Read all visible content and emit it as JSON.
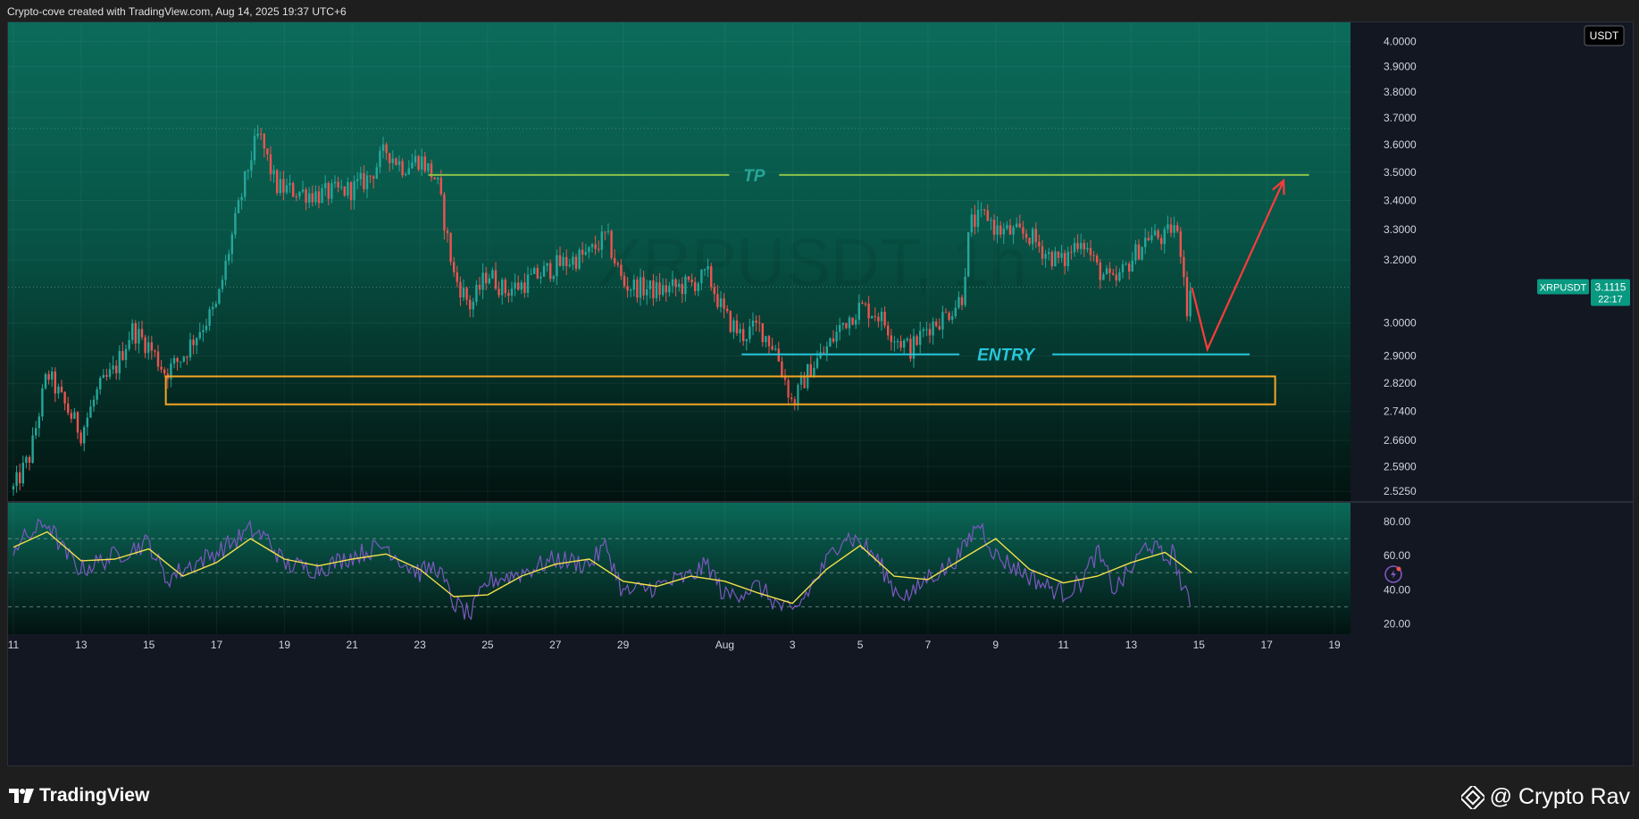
{
  "header": {
    "text": "Crypto-cove created with TradingView.com, Aug 14, 2025 19:37 UTC+6"
  },
  "footer": {
    "brand": "TradingView",
    "watermark": "@ Crypto Rav"
  },
  "colors": {
    "up_candle": "#26a69a",
    "down_candle": "#ef5350",
    "tp_line": "#8bc34a",
    "entry_line": "#26c6da",
    "zone_border": "#f5a623",
    "arrow": "#ff3b3b",
    "rsi_line": "#7e57c2",
    "rsi_ma": "#f5e04a",
    "price_tag": "#089981",
    "bg_top": "#0b6b5a",
    "bg_bottom": "#02120f"
  },
  "icons": [
    "tradingview-logo-icon",
    "lightning-alert-icon",
    "binance-diamond-icon"
  ],
  "chart_data": [
    {
      "type": "candlestick",
      "watermark_symbol": "XRPUSDT, 1h",
      "currency_label": "USDT",
      "symbol_tag": "XRPUSDT",
      "last_price": "3.1115",
      "countdown": "22:17",
      "y_scale": "log",
      "ylim": [
        2.5,
        4.08
      ],
      "price_ticks": [
        "4.0000",
        "3.9000",
        "3.8000",
        "3.7000",
        "3.6000",
        "3.5000",
        "3.4000",
        "3.3000",
        "3.2000",
        "3.0000",
        "2.9000",
        "2.8200",
        "2.7400",
        "2.6600",
        "2.5900",
        "2.5250"
      ],
      "x_ticks": [
        "11",
        "13",
        "15",
        "17",
        "19",
        "21",
        "23",
        "25",
        "27",
        "29",
        "Aug",
        "3",
        "5",
        "7",
        "9",
        "11",
        "13",
        "15",
        "17",
        "19"
      ],
      "x_tick_dates": [
        "2025-07-11",
        "2025-07-13",
        "2025-07-15",
        "2025-07-17",
        "2025-07-19",
        "2025-07-21",
        "2025-07-23",
        "2025-07-25",
        "2025-07-27",
        "2025-07-29",
        "2025-08-01",
        "2025-08-03",
        "2025-08-05",
        "2025-08-07",
        "2025-08-09",
        "2025-08-11",
        "2025-08-13",
        "2025-08-15",
        "2025-08-17",
        "2025-08-19"
      ],
      "x_range": [
        "2025-07-11",
        "2025-08-19"
      ],
      "price_path": [
        {
          "x": "2025-07-11",
          "y": 2.53
        },
        {
          "x": "2025-07-11T12:00",
          "y": 2.62
        },
        {
          "x": "2025-07-12",
          "y": 2.85
        },
        {
          "x": "2025-07-12T12:00",
          "y": 2.76
        },
        {
          "x": "2025-07-13",
          "y": 2.68
        },
        {
          "x": "2025-07-13T12:00",
          "y": 2.8
        },
        {
          "x": "2025-07-14",
          "y": 2.86
        },
        {
          "x": "2025-07-14T12:00",
          "y": 2.98
        },
        {
          "x": "2025-07-15",
          "y": 2.93
        },
        {
          "x": "2025-07-15T12:00",
          "y": 2.85
        },
        {
          "x": "2025-07-16",
          "y": 2.9
        },
        {
          "x": "2025-07-16T12:00",
          "y": 2.98
        },
        {
          "x": "2025-07-17",
          "y": 3.05
        },
        {
          "x": "2025-07-17T12:00",
          "y": 3.3
        },
        {
          "x": "2025-07-18",
          "y": 3.55
        },
        {
          "x": "2025-07-18T06:00",
          "y": 3.64
        },
        {
          "x": "2025-07-18T18:00",
          "y": 3.45
        },
        {
          "x": "2025-07-19",
          "y": 3.44
        },
        {
          "x": "2025-07-20",
          "y": 3.42
        },
        {
          "x": "2025-07-21",
          "y": 3.44
        },
        {
          "x": "2025-07-21T12:00",
          "y": 3.48
        },
        {
          "x": "2025-07-22",
          "y": 3.58
        },
        {
          "x": "2025-07-22T12:00",
          "y": 3.52
        },
        {
          "x": "2025-07-23",
          "y": 3.55
        },
        {
          "x": "2025-07-23T12:00",
          "y": 3.47
        },
        {
          "x": "2025-07-24",
          "y": 3.15
        },
        {
          "x": "2025-07-24T12:00",
          "y": 3.05
        },
        {
          "x": "2025-07-25",
          "y": 3.16
        },
        {
          "x": "2025-07-25T12:00",
          "y": 3.1
        },
        {
          "x": "2025-07-26",
          "y": 3.12
        },
        {
          "x": "2025-07-27",
          "y": 3.18
        },
        {
          "x": "2025-07-28",
          "y": 3.22
        },
        {
          "x": "2025-07-28T12:00",
          "y": 3.28
        },
        {
          "x": "2025-07-29",
          "y": 3.12
        },
        {
          "x": "2025-07-30",
          "y": 3.1
        },
        {
          "x": "2025-07-31",
          "y": 3.12
        },
        {
          "x": "2025-07-31T12:00",
          "y": 3.15
        },
        {
          "x": "2025-08-01",
          "y": 3.02
        },
        {
          "x": "2025-08-01T12:00",
          "y": 2.96
        },
        {
          "x": "2025-08-02",
          "y": 2.99
        },
        {
          "x": "2025-08-02T12:00",
          "y": 2.92
        },
        {
          "x": "2025-08-03",
          "y": 2.76
        },
        {
          "x": "2025-08-03T12:00",
          "y": 2.86
        },
        {
          "x": "2025-08-04",
          "y": 2.92
        },
        {
          "x": "2025-08-04T12:00",
          "y": 3.0
        },
        {
          "x": "2025-08-05",
          "y": 3.05
        },
        {
          "x": "2025-08-05T12:00",
          "y": 3.03
        },
        {
          "x": "2025-08-06",
          "y": 2.96
        },
        {
          "x": "2025-08-06T12:00",
          "y": 2.92
        },
        {
          "x": "2025-08-07",
          "y": 2.99
        },
        {
          "x": "2025-08-07T12:00",
          "y": 3.02
        },
        {
          "x": "2025-08-08",
          "y": 3.08
        },
        {
          "x": "2025-08-08T06:00",
          "y": 3.32
        },
        {
          "x": "2025-08-08T18:00",
          "y": 3.35
        },
        {
          "x": "2025-08-09",
          "y": 3.3
        },
        {
          "x": "2025-08-10",
          "y": 3.28
        },
        {
          "x": "2025-08-10T12:00",
          "y": 3.22
        },
        {
          "x": "2025-08-11",
          "y": 3.19
        },
        {
          "x": "2025-08-11T12:00",
          "y": 3.28
        },
        {
          "x": "2025-08-12",
          "y": 3.17
        },
        {
          "x": "2025-08-12T12:00",
          "y": 3.12
        },
        {
          "x": "2025-08-13",
          "y": 3.2
        },
        {
          "x": "2025-08-13T12:00",
          "y": 3.28
        },
        {
          "x": "2025-08-14",
          "y": 3.27
        },
        {
          "x": "2025-08-14T06:00",
          "y": 3.32
        },
        {
          "x": "2025-08-14T12:00",
          "y": 3.22
        },
        {
          "x": "2025-08-14T16:00",
          "y": 3.03
        },
        {
          "x": "2025-08-14T19:00",
          "y": 3.11
        }
      ],
      "annotations": {
        "tp": {
          "label": "TP",
          "price": 3.49,
          "from": "2025-07-23T06:00",
          "to": "2025-08-18T06:00"
        },
        "entry": {
          "label": "ENTRY",
          "price": 2.905,
          "from": "2025-08-01T12:00",
          "to": "2025-08-16T12:00"
        },
        "zone": {
          "top": 2.84,
          "bottom": 2.76,
          "from": "2025-07-15T12:00",
          "to": "2025-08-17T06:00"
        },
        "projection": [
          {
            "x": "2025-08-14T19:00",
            "y": 3.11
          },
          {
            "x": "2025-08-15T06:00",
            "y": 2.92
          },
          {
            "x": "2025-08-17T12:00",
            "y": 3.47
          }
        ]
      },
      "dotted_levels": [
        3.66,
        3.1115
      ]
    },
    {
      "type": "line",
      "indicator": "RSI",
      "ylim": [
        15,
        90
      ],
      "ticks": [
        "80.00",
        "60.00",
        "40.00",
        "20.00"
      ],
      "bands": [
        70,
        50,
        30
      ],
      "rsi_path": [
        {
          "x": "2025-07-11",
          "y": 65
        },
        {
          "x": "2025-07-12",
          "y": 80
        },
        {
          "x": "2025-07-12T12:00",
          "y": 62
        },
        {
          "x": "2025-07-13",
          "y": 52
        },
        {
          "x": "2025-07-14",
          "y": 60
        },
        {
          "x": "2025-07-15",
          "y": 68
        },
        {
          "x": "2025-07-15T12:00",
          "y": 46
        },
        {
          "x": "2025-07-16",
          "y": 52
        },
        {
          "x": "2025-07-17",
          "y": 62
        },
        {
          "x": "2025-07-18",
          "y": 75
        },
        {
          "x": "2025-07-18T12:00",
          "y": 70
        },
        {
          "x": "2025-07-19",
          "y": 55
        },
        {
          "x": "2025-07-20",
          "y": 52
        },
        {
          "x": "2025-07-21",
          "y": 60
        },
        {
          "x": "2025-07-22",
          "y": 66
        },
        {
          "x": "2025-07-22T12:00",
          "y": 56
        },
        {
          "x": "2025-07-23",
          "y": 50
        },
        {
          "x": "2025-07-23T12:00",
          "y": 54
        },
        {
          "x": "2025-07-24",
          "y": 32
        },
        {
          "x": "2025-07-24T12:00",
          "y": 25
        },
        {
          "x": "2025-07-25",
          "y": 45
        },
        {
          "x": "2025-07-26",
          "y": 50
        },
        {
          "x": "2025-07-27",
          "y": 58
        },
        {
          "x": "2025-07-28",
          "y": 55
        },
        {
          "x": "2025-07-28T12:00",
          "y": 66
        },
        {
          "x": "2025-07-29",
          "y": 38
        },
        {
          "x": "2025-07-30",
          "y": 42
        },
        {
          "x": "2025-07-31",
          "y": 48
        },
        {
          "x": "2025-07-31T12:00",
          "y": 55
        },
        {
          "x": "2025-08-01",
          "y": 36
        },
        {
          "x": "2025-08-02",
          "y": 42
        },
        {
          "x": "2025-08-02T12:00",
          "y": 32
        },
        {
          "x": "2025-08-03",
          "y": 26
        },
        {
          "x": "2025-08-03T12:00",
          "y": 40
        },
        {
          "x": "2025-08-04",
          "y": 56
        },
        {
          "x": "2025-08-04T12:00",
          "y": 72
        },
        {
          "x": "2025-08-05",
          "y": 68
        },
        {
          "x": "2025-08-05T12:00",
          "y": 58
        },
        {
          "x": "2025-08-06",
          "y": 40
        },
        {
          "x": "2025-08-06T12:00",
          "y": 36
        },
        {
          "x": "2025-08-07",
          "y": 48
        },
        {
          "x": "2025-08-07T12:00",
          "y": 52
        },
        {
          "x": "2025-08-08",
          "y": 62
        },
        {
          "x": "2025-08-08T12:00",
          "y": 80
        },
        {
          "x": "2025-08-09",
          "y": 60
        },
        {
          "x": "2025-08-09T12:00",
          "y": 54
        },
        {
          "x": "2025-08-10",
          "y": 48
        },
        {
          "x": "2025-08-10T12:00",
          "y": 42
        },
        {
          "x": "2025-08-11",
          "y": 38
        },
        {
          "x": "2025-08-11T12:00",
          "y": 44
        },
        {
          "x": "2025-08-12",
          "y": 62
        },
        {
          "x": "2025-08-12T12:00",
          "y": 40
        },
        {
          "x": "2025-08-13",
          "y": 52
        },
        {
          "x": "2025-08-13T12:00",
          "y": 68
        },
        {
          "x": "2025-08-14",
          "y": 58
        },
        {
          "x": "2025-08-14T06:00",
          "y": 62
        },
        {
          "x": "2025-08-14T12:00",
          "y": 42
        },
        {
          "x": "2025-08-14T19:00",
          "y": 28
        }
      ],
      "ma_path": [
        {
          "x": "2025-07-11",
          "y": 65
        },
        {
          "x": "2025-07-12",
          "y": 74
        },
        {
          "x": "2025-07-13",
          "y": 57
        },
        {
          "x": "2025-07-14",
          "y": 58
        },
        {
          "x": "2025-07-15",
          "y": 64
        },
        {
          "x": "2025-07-16",
          "y": 48
        },
        {
          "x": "2025-07-17",
          "y": 56
        },
        {
          "x": "2025-07-18",
          "y": 70
        },
        {
          "x": "2025-07-19",
          "y": 58
        },
        {
          "x": "2025-07-20",
          "y": 54
        },
        {
          "x": "2025-07-21",
          "y": 58
        },
        {
          "x": "2025-07-22",
          "y": 61
        },
        {
          "x": "2025-07-23",
          "y": 52
        },
        {
          "x": "2025-07-24",
          "y": 36
        },
        {
          "x": "2025-07-25",
          "y": 37
        },
        {
          "x": "2025-07-26",
          "y": 48
        },
        {
          "x": "2025-07-27",
          "y": 55
        },
        {
          "x": "2025-07-28",
          "y": 58
        },
        {
          "x": "2025-07-29",
          "y": 45
        },
        {
          "x": "2025-07-30",
          "y": 42
        },
        {
          "x": "2025-07-31",
          "y": 48
        },
        {
          "x": "2025-08-01",
          "y": 45
        },
        {
          "x": "2025-08-02",
          "y": 38
        },
        {
          "x": "2025-08-03",
          "y": 32
        },
        {
          "x": "2025-08-04",
          "y": 52
        },
        {
          "x": "2025-08-05",
          "y": 66
        },
        {
          "x": "2025-08-06",
          "y": 48
        },
        {
          "x": "2025-08-07",
          "y": 46
        },
        {
          "x": "2025-08-08",
          "y": 58
        },
        {
          "x": "2025-08-09",
          "y": 70
        },
        {
          "x": "2025-08-10",
          "y": 52
        },
        {
          "x": "2025-08-11",
          "y": 44
        },
        {
          "x": "2025-08-12",
          "y": 48
        },
        {
          "x": "2025-08-13",
          "y": 56
        },
        {
          "x": "2025-08-14",
          "y": 62
        },
        {
          "x": "2025-08-14T19:00",
          "y": 50
        }
      ]
    }
  ]
}
